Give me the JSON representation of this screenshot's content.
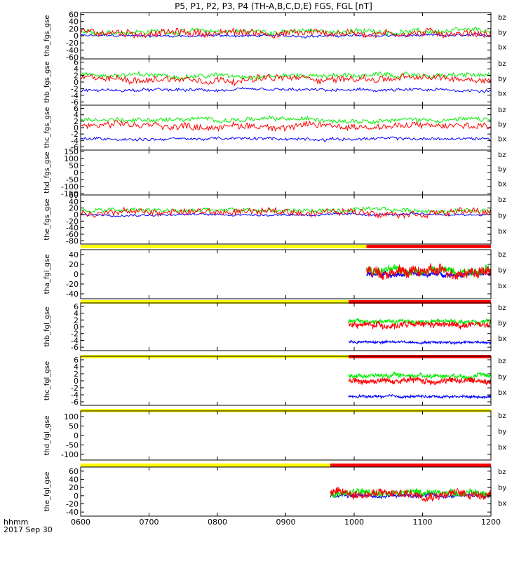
{
  "title": "P5, P1, P2, P3, P4 (TH-A,B,C,D,E) FGS, FGL [nT]",
  "time_axis_label": "hhmm",
  "date_label": "2017 Sep 30",
  "x_ticks": [
    "0600",
    "0700",
    "0800",
    "0900",
    "1000",
    "1100",
    "1200"
  ],
  "x_range_hours": [
    6,
    12
  ],
  "colors": {
    "bx": "#0000ff",
    "by": "#00ee00",
    "bz": "#ff0000",
    "bar_off": "#ffff00",
    "bar_on": "#ff0000"
  },
  "legend": [
    "bz",
    "by",
    "bx"
  ],
  "chart_data": [
    {
      "type": "line",
      "ylabel": "tha_fgs_gse",
      "ylim": [
        -65,
        65
      ],
      "ticks": [
        "60",
        "40",
        "20",
        "0",
        "-20",
        "-40",
        "-60"
      ],
      "tick_values": [
        60,
        40,
        20,
        0,
        -20,
        -40,
        -60
      ],
      "data_start_hour": 6.0,
      "series": [
        {
          "name": "bx",
          "baseline": 0,
          "amp": 6
        },
        {
          "name": "by",
          "baseline": 12,
          "amp": 12
        },
        {
          "name": "bz",
          "baseline": 8,
          "amp": 18
        }
      ]
    },
    {
      "type": "line",
      "ylabel": "thb_fgs_gse",
      "ylim": [
        -7,
        7
      ],
      "ticks": [
        "6",
        "4",
        "2",
        "0",
        "-2",
        "-4",
        "-6"
      ],
      "tick_values": [
        6,
        4,
        2,
        0,
        -2,
        -4,
        -6
      ],
      "data_start_hour": 6.0,
      "series": [
        {
          "name": "bx",
          "baseline": -2.5,
          "amp": 0.8
        },
        {
          "name": "by",
          "baseline": 2,
          "amp": 1.2
        },
        {
          "name": "bz",
          "baseline": 1,
          "amp": 1.8
        }
      ]
    },
    {
      "type": "line",
      "ylabel": "thc_fgs_gse",
      "ylim": [
        -7,
        7
      ],
      "ticks": [
        "6",
        "4",
        "2",
        "0",
        "-2",
        "-4",
        "-6"
      ],
      "tick_values": [
        6,
        4,
        2,
        0,
        -2,
        -4,
        -6
      ],
      "data_start_hour": 6.0,
      "series": [
        {
          "name": "bx",
          "baseline": -3.5,
          "amp": 0.8
        },
        {
          "name": "by",
          "baseline": 2.5,
          "amp": 1.2
        },
        {
          "name": "bz",
          "baseline": 0.5,
          "amp": 1.8
        }
      ]
    },
    {
      "type": "line",
      "ylabel": "thd_fgs_gse",
      "ylim": [
        -160,
        160
      ],
      "ticks": [
        "150",
        "100",
        "50",
        "0",
        "-50",
        "-100",
        "-150"
      ],
      "tick_values": [
        150,
        100,
        50,
        0,
        -50,
        -100,
        -150
      ],
      "series": []
    },
    {
      "type": "line",
      "ylabel": "the_fgs_gse",
      "ylim": [
        -90,
        60
      ],
      "ticks": [
        "60",
        "40",
        "20",
        "0",
        "-20",
        "-40",
        "-60",
        "-80"
      ],
      "tick_values": [
        60,
        40,
        20,
        0,
        -20,
        -40,
        -60,
        -80
      ],
      "data_start_hour": 6.0,
      "series": [
        {
          "name": "bx",
          "baseline": 0,
          "amp": 6
        },
        {
          "name": "by",
          "baseline": 12,
          "amp": 12
        },
        {
          "name": "bz",
          "baseline": 8,
          "amp": 18
        }
      ]
    },
    {
      "type": "line",
      "ylabel": "tha_fgl_gse",
      "ylim": [
        -50,
        50
      ],
      "ticks": [
        "40",
        "20",
        "0",
        "-20",
        "-40"
      ],
      "tick_values": [
        40,
        20,
        0,
        -20,
        -40
      ],
      "bar_switch_hour": 10.18,
      "data_start_hour": 10.18,
      "series": [
        {
          "name": "bx",
          "baseline": 0,
          "amp": 8
        },
        {
          "name": "by",
          "baseline": 8,
          "amp": 14
        },
        {
          "name": "bz",
          "baseline": 5,
          "amp": 18
        }
      ]
    },
    {
      "type": "line",
      "ylabel": "thb_fgl_gse",
      "ylim": [
        -7,
        7
      ],
      "ticks": [
        "6",
        "4",
        "2",
        "0",
        "-2",
        "-4",
        "-6"
      ],
      "tick_values": [
        6,
        4,
        2,
        0,
        -2,
        -4,
        -6
      ],
      "bar_switch_hour": 9.92,
      "data_start_hour": 9.92,
      "series": [
        {
          "name": "bx",
          "baseline": -4.5,
          "amp": 0.6
        },
        {
          "name": "by",
          "baseline": 1.5,
          "amp": 1.0
        },
        {
          "name": "bz",
          "baseline": 0.5,
          "amp": 1.5
        }
      ]
    },
    {
      "type": "line",
      "ylabel": "thc_fgl_gse",
      "ylim": [
        -7,
        7
      ],
      "ticks": [
        "6",
        "4",
        "2",
        "0",
        "-2",
        "-4",
        "-6"
      ],
      "tick_values": [
        6,
        4,
        2,
        0,
        -2,
        -4,
        -6
      ],
      "bar_switch_hour": 9.92,
      "data_start_hour": 9.92,
      "series": [
        {
          "name": "bx",
          "baseline": -4.5,
          "amp": 0.6
        },
        {
          "name": "by",
          "baseline": 1.5,
          "amp": 1.0
        },
        {
          "name": "bz",
          "baseline": 0,
          "amp": 1.5
        }
      ]
    },
    {
      "type": "line",
      "ylabel": "thd_fgl_gse",
      "ylim": [
        -130,
        130
      ],
      "ticks": [
        "100",
        "50",
        "0",
        "-50",
        "-100"
      ],
      "tick_values": [
        100,
        50,
        0,
        -50,
        -100
      ],
      "bar_switch_hour": 12.0,
      "series": []
    },
    {
      "type": "line",
      "ylabel": "the_fgl_gse",
      "ylim": [
        -50,
        70
      ],
      "ticks": [
        "60",
        "40",
        "20",
        "0",
        "-20",
        "-40"
      ],
      "tick_values": [
        60,
        40,
        20,
        0,
        -20,
        -40
      ],
      "bar_switch_hour": 9.65,
      "data_start_hour": 9.65,
      "series": [
        {
          "name": "bx",
          "baseline": 0,
          "amp": 8
        },
        {
          "name": "by",
          "baseline": 8,
          "amp": 14
        },
        {
          "name": "bz",
          "baseline": 5,
          "amp": 18
        }
      ]
    }
  ]
}
